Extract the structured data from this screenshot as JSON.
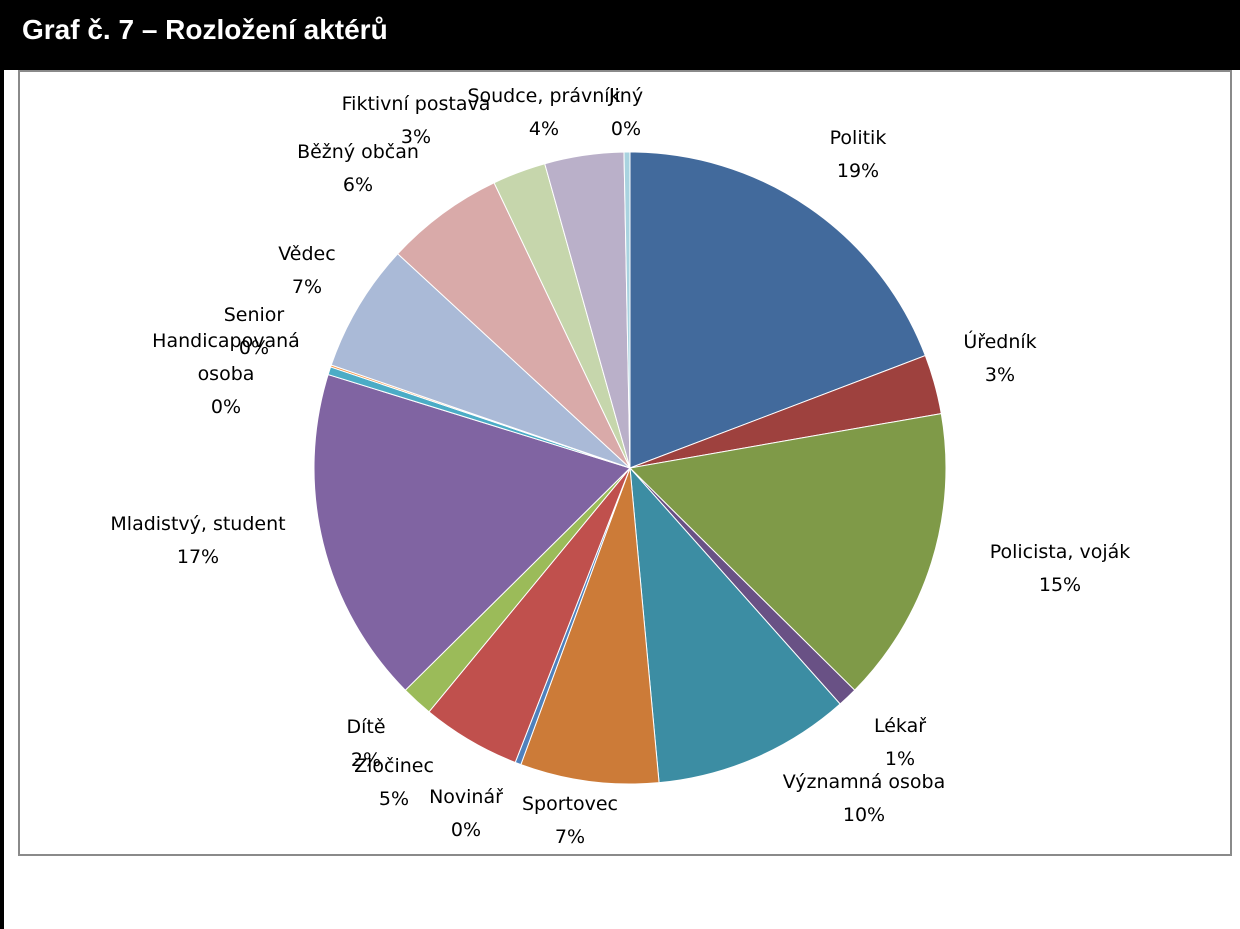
{
  "title": "Graf č. 7 – Rozložení aktérů",
  "chart_data": {
    "type": "pie",
    "title": "Graf č. 7 – Rozložení aktérů",
    "start": "12 o'clock",
    "direction": "clockwise",
    "slices": [
      {
        "name": "Politik",
        "value": 19,
        "pct_label": "19%",
        "color": "#426A9C"
      },
      {
        "name": "Úředník",
        "value": 3,
        "pct_label": "3%",
        "color": "#9E413E"
      },
      {
        "name": "Policista, voják",
        "value": 15,
        "pct_label": "15%",
        "color": "#7F9A48"
      },
      {
        "name": "Lékař",
        "value": 1,
        "pct_label": "1%",
        "color": "#695185"
      },
      {
        "name": "Významná osoba",
        "value": 10,
        "pct_label": "10%",
        "color": "#3C8DA3"
      },
      {
        "name": "Sportovec",
        "value": 7,
        "pct_label": "7%",
        "color": "#CC7B38"
      },
      {
        "name": "Novinář",
        "value": 0.3,
        "pct_label": "0%",
        "color": "#4F81BD"
      },
      {
        "name": "Zločinec",
        "value": 5,
        "pct_label": "5%",
        "color": "#C0504D"
      },
      {
        "name": "Dítě",
        "value": 1.6,
        "pct_label": "2%",
        "color": "#9BBB59"
      },
      {
        "name": "Mladistvý, student",
        "value": 17,
        "pct_label": "17%",
        "color": "#8064A2"
      },
      {
        "name": "Handicapovaná osoba",
        "value": 0.4,
        "pct_label": "0%",
        "color": "#4BACC6"
      },
      {
        "name": "Senior",
        "value": 0.1,
        "pct_label": "0%",
        "color": "#F79646"
      },
      {
        "name": "Vědec",
        "value": 6.5,
        "pct_label": "7%",
        "color": "#AABAD7"
      },
      {
        "name": "Běžný občan",
        "value": 6,
        "pct_label": "6%",
        "color": "#D9AAA9"
      },
      {
        "name": "Fiktivní postava",
        "value": 2.7,
        "pct_label": "3%",
        "color": "#C6D6AC"
      },
      {
        "name": "Soudce, právník",
        "value": 4,
        "pct_label": "4%",
        "color": "#BAB0C9"
      },
      {
        "name": "Jiný",
        "value": 0.3,
        "pct_label": "0%",
        "color": "#A9D3E0"
      }
    ]
  }
}
